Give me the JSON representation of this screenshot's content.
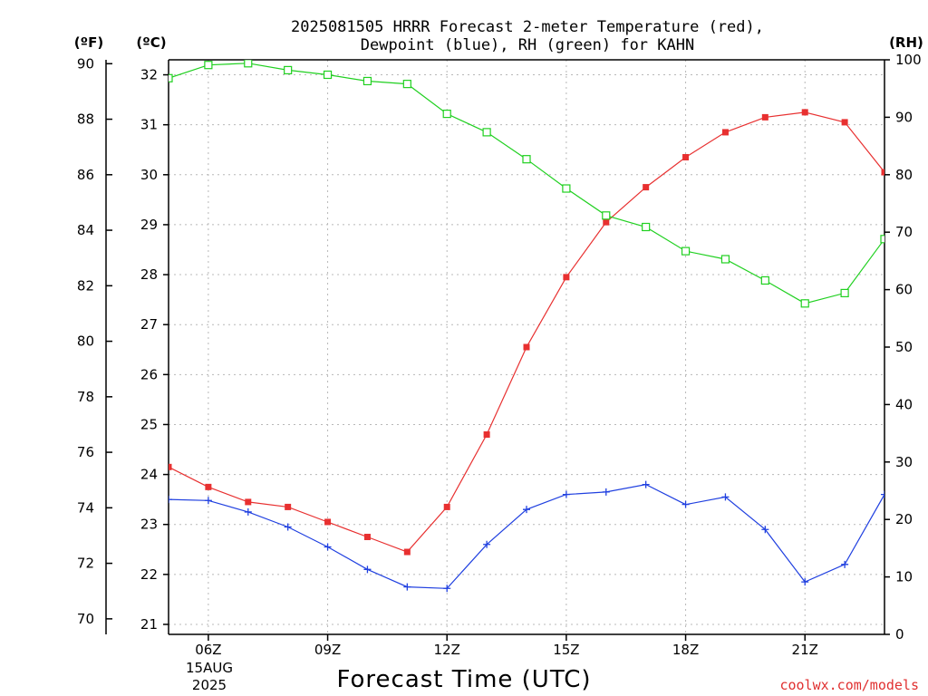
{
  "title": {
    "line1": "2025081505 HRRR Forecast 2-meter Temperature (red),",
    "line2": "Dewpoint (blue), RH (green) for KAHN"
  },
  "units": {
    "fahrenheit": "(ºF)",
    "celsius": "(ºC)",
    "rh": "(RH)"
  },
  "xlabel": "Forecast Time (UTC)",
  "credit": "coolwx.com/models",
  "date_label": {
    "day": "15AUG",
    "year": "2025"
  },
  "colors": {
    "temperature": "#e83030",
    "dewpoint": "#2040e0",
    "rh": "#20d020"
  },
  "chart_data": {
    "type": "line",
    "x": [
      "05Z",
      "06Z",
      "07Z",
      "08Z",
      "09Z",
      "10Z",
      "11Z",
      "12Z",
      "13Z",
      "14Z",
      "15Z",
      "16Z",
      "17Z",
      "18Z",
      "19Z",
      "20Z",
      "21Z",
      "22Z",
      "23Z"
    ],
    "x_tick_labels": [
      "06Z",
      "09Z",
      "12Z",
      "15Z",
      "18Z",
      "21Z"
    ],
    "left_axis_c": {
      "label": "(ºC)",
      "range": [
        20.8,
        32.3
      ],
      "ticks": [
        21,
        22,
        23,
        24,
        25,
        26,
        27,
        28,
        29,
        30,
        31,
        32
      ]
    },
    "left_axis_f": {
      "label": "(ºF)",
      "ticks": [
        70,
        72,
        74,
        76,
        78,
        80,
        82,
        84,
        86,
        88,
        90
      ]
    },
    "right_axis_rh": {
      "label": "(RH)",
      "range": [
        0,
        100
      ],
      "ticks": [
        0,
        10,
        20,
        30,
        40,
        50,
        60,
        70,
        80,
        90,
        100
      ]
    },
    "grid": true,
    "series": [
      {
        "name": "Temperature",
        "axis": "C",
        "color": "#e83030",
        "marker": "filled-square",
        "values": [
          24.15,
          23.75,
          23.45,
          23.35,
          23.05,
          22.75,
          22.45,
          23.35,
          24.8,
          26.55,
          27.95,
          29.05,
          29.75,
          30.35,
          30.85,
          31.15,
          31.25,
          31.05,
          30.05
        ]
      },
      {
        "name": "Dewpoint",
        "axis": "C",
        "color": "#2040e0",
        "marker": "plus",
        "values": [
          23.5,
          23.48,
          23.25,
          22.95,
          22.55,
          22.1,
          21.75,
          21.72,
          22.6,
          23.3,
          23.6,
          23.65,
          23.8,
          23.4,
          23.55,
          22.9,
          21.85,
          22.2,
          23.6
        ]
      },
      {
        "name": "RH",
        "axis": "RH",
        "color": "#20d020",
        "marker": "open-square",
        "values": [
          96.8,
          99.1,
          99.4,
          98.2,
          97.4,
          96.3,
          95.8,
          90.6,
          87.4,
          82.7,
          77.6,
          72.9,
          70.9,
          66.7,
          65.3,
          61.6,
          57.6,
          59.4,
          68.8
        ]
      }
    ]
  }
}
